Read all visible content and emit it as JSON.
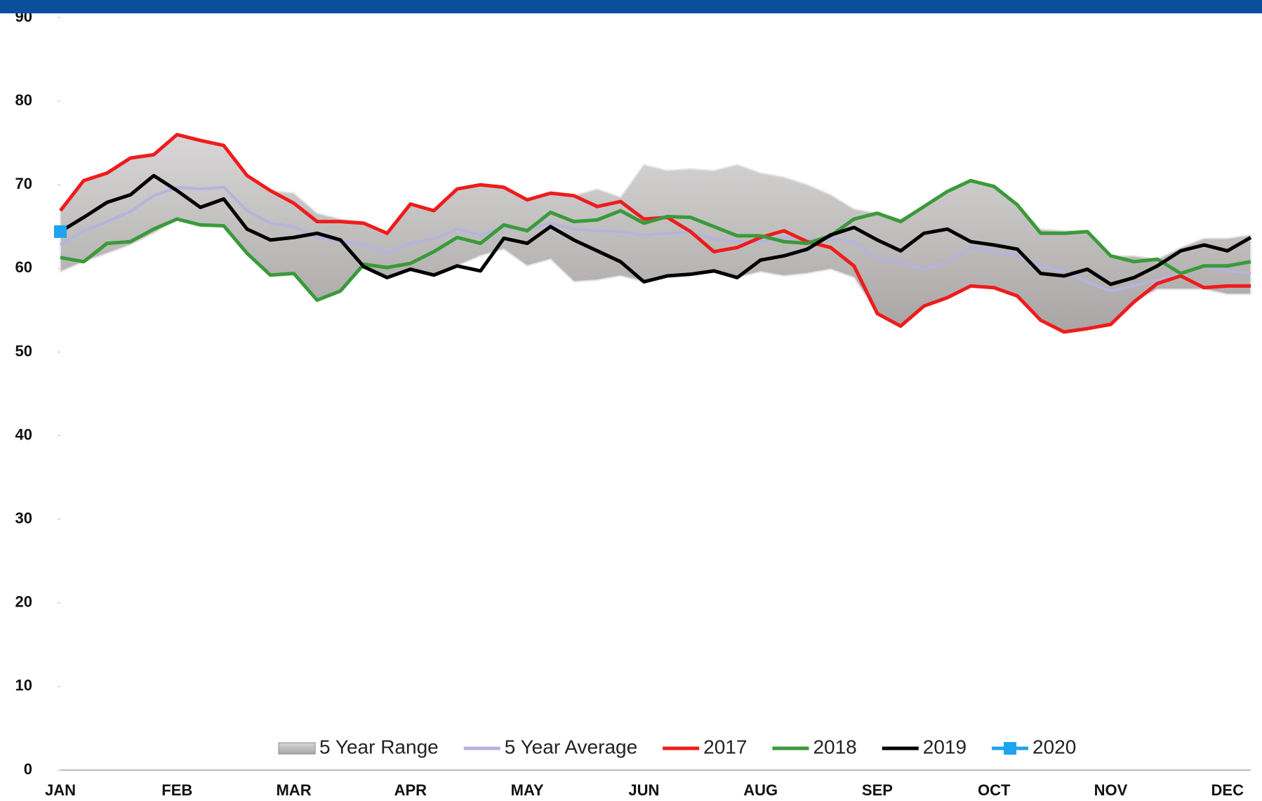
{
  "chart_data": {
    "type": "line",
    "categories": [
      "JAN",
      null,
      null,
      null,
      null,
      "FEB",
      null,
      null,
      null,
      null,
      "MAR",
      null,
      null,
      null,
      null,
      "APR",
      null,
      null,
      null,
      null,
      "MAY",
      null,
      null,
      null,
      null,
      "JUN",
      null,
      null,
      null,
      null,
      "AUG",
      null,
      null,
      null,
      null,
      "SEP",
      null,
      null,
      null,
      null,
      "OCT",
      null,
      null,
      null,
      null,
      "NOV",
      null,
      null,
      null,
      null,
      "DEC",
      null
    ],
    "ylim": [
      0,
      90
    ],
    "yticks": [
      0,
      10,
      20,
      30,
      40,
      50,
      60,
      70,
      80,
      90
    ],
    "range": {
      "name": "5 Year Range",
      "color": "#b3afaf",
      "low": [
        59.6,
        60.8,
        61.8,
        62.8,
        64.2,
        65.9,
        65.2,
        65.1,
        61.8,
        59.2,
        59.4,
        56.2,
        57.3,
        60.2,
        58.9,
        59.9,
        59.2,
        60.3,
        61.5,
        62.3,
        60.3,
        61.1,
        58.4,
        58.6,
        59.1,
        58.4,
        59.1,
        59.3,
        59.7,
        58.9,
        59.6,
        59.1,
        59.4,
        59.9,
        58.9,
        54.6,
        53.1,
        55.5,
        56.5,
        57.9,
        57.7,
        56.7,
        53.8,
        52.4,
        52.8,
        53.3,
        56.0,
        57.5,
        57.5,
        57.5,
        56.9,
        56.9
      ],
      "high": [
        66.9,
        70.5,
        71.4,
        73.2,
        73.6,
        76.0,
        75.3,
        74.7,
        71.1,
        69.3,
        69.0,
        66.6,
        65.9,
        65.6,
        64.2,
        67.7,
        66.9,
        69.5,
        70.0,
        69.7,
        68.2,
        69.0,
        68.7,
        69.5,
        68.5,
        72.4,
        71.7,
        71.9,
        71.7,
        72.4,
        71.4,
        70.9,
        70.0,
        68.8,
        67.1,
        66.6,
        65.9,
        67.4,
        69.2,
        70.5,
        69.8,
        67.6,
        64.7,
        64.5,
        64.4,
        61.5,
        61.5,
        61.1,
        62.5,
        63.6,
        63.6,
        64.0
      ]
    },
    "series": [
      {
        "name": "5 Year Average",
        "color": "#b4b4dc",
        "values": [
          62.8,
          64.5,
          65.6,
          66.8,
          68.7,
          69.7,
          69.5,
          69.7,
          66.9,
          65.4,
          65.0,
          63.7,
          63.2,
          62.9,
          61.8,
          63.0,
          63.5,
          64.7,
          64.0,
          64.9,
          64.7,
          65.4,
          64.7,
          64.5,
          64.4,
          64.0,
          64.2,
          64.3,
          63.5,
          63.2,
          63.2,
          63.7,
          63.4,
          63.5,
          63.2,
          61.1,
          60.8,
          59.9,
          60.8,
          62.5,
          62.0,
          61.5,
          60.3,
          59.6,
          58.4,
          57.3,
          57.9,
          58.6,
          59.4,
          60.2,
          59.7,
          59.4
        ]
      },
      {
        "name": "2017",
        "color": "#ee1c1c",
        "values": [
          66.9,
          70.5,
          71.4,
          73.2,
          73.6,
          76.0,
          75.3,
          74.7,
          71.1,
          69.3,
          67.8,
          65.6,
          65.6,
          65.4,
          64.2,
          67.7,
          66.9,
          69.5,
          70.0,
          69.7,
          68.2,
          69.0,
          68.7,
          67.4,
          68.0,
          65.9,
          66.1,
          64.4,
          62.0,
          62.5,
          63.7,
          64.5,
          63.2,
          62.5,
          60.3,
          54.6,
          53.1,
          55.5,
          56.5,
          57.9,
          57.7,
          56.7,
          53.8,
          52.4,
          52.8,
          53.3,
          56.0,
          58.2,
          59.1,
          57.7,
          57.9,
          57.9
        ]
      },
      {
        "name": "2018",
        "color": "#3a9a3a",
        "values": [
          61.3,
          60.8,
          63.0,
          63.2,
          64.7,
          65.9,
          65.2,
          65.1,
          61.8,
          59.2,
          59.4,
          56.2,
          57.3,
          60.5,
          60.1,
          60.6,
          62.0,
          63.7,
          63.0,
          65.2,
          64.5,
          66.7,
          65.6,
          65.8,
          66.9,
          65.4,
          66.2,
          66.1,
          65.0,
          63.9,
          63.9,
          63.2,
          63.0,
          63.9,
          65.9,
          66.6,
          65.6,
          67.4,
          69.2,
          70.5,
          69.8,
          67.6,
          64.2,
          64.2,
          64.4,
          61.5,
          60.8,
          61.1,
          59.4,
          60.3,
          60.3,
          60.8
        ]
      },
      {
        "name": "2019",
        "color": "#000000",
        "values": [
          64.4,
          66.1,
          67.9,
          68.8,
          71.1,
          69.3,
          67.3,
          68.3,
          64.7,
          63.4,
          63.7,
          64.2,
          63.4,
          60.2,
          58.9,
          59.9,
          59.2,
          60.3,
          59.7,
          63.6,
          63.0,
          65.0,
          63.4,
          62.1,
          60.8,
          58.4,
          59.1,
          59.3,
          59.7,
          58.9,
          61.0,
          61.5,
          62.3,
          64.0,
          64.9,
          63.4,
          62.1,
          64.2,
          64.7,
          63.2,
          62.8,
          62.3,
          59.4,
          59.1,
          59.9,
          58.1,
          58.9,
          60.3,
          62.1,
          62.8,
          62.1,
          63.7
        ]
      },
      {
        "name": "2020",
        "color": "#1fa3ee",
        "marker": "square",
        "values": [
          64.4,
          null,
          null,
          null,
          null,
          null,
          null,
          null,
          null,
          null,
          null,
          null,
          null,
          null,
          null,
          null,
          null,
          null,
          null,
          null,
          null,
          null,
          null,
          null,
          null,
          null,
          null,
          null,
          null,
          null,
          null,
          null,
          null,
          null,
          null,
          null,
          null,
          null,
          null,
          null,
          null,
          null,
          null,
          null,
          null,
          null,
          null,
          null,
          null,
          null,
          null,
          null
        ]
      }
    ]
  }
}
